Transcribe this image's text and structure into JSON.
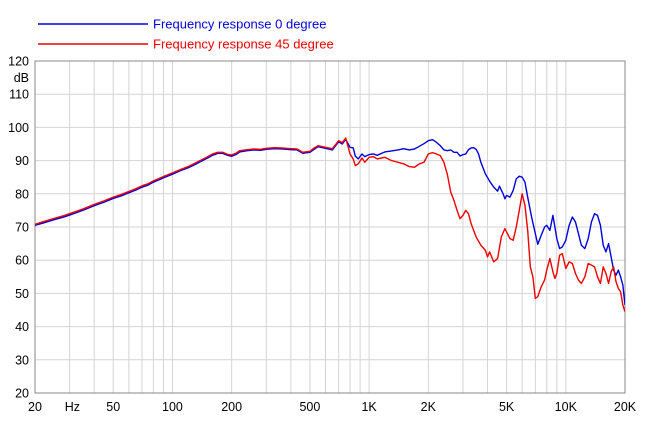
{
  "chart_data": {
    "type": "line",
    "title": "",
    "xlabel": "",
    "ylabel": "dB",
    "x_scale": "log",
    "xlim": [
      20,
      20000
    ],
    "ylim": [
      20,
      120
    ],
    "y_ticks": [
      20,
      30,
      40,
      50,
      60,
      70,
      80,
      90,
      100,
      110,
      120
    ],
    "x_tick_labels": [
      {
        "value": 20,
        "label": "20"
      },
      {
        "value": 50,
        "label": "50"
      },
      {
        "value": 100,
        "label": "100"
      },
      {
        "value": 200,
        "label": "200"
      },
      {
        "value": 500,
        "label": "500"
      },
      {
        "value": 1000,
        "label": "1K"
      },
      {
        "value": 2000,
        "label": "2K"
      },
      {
        "value": 5000,
        "label": "5K"
      },
      {
        "value": 10000,
        "label": "10K"
      },
      {
        "value": 20000,
        "label": "20K"
      }
    ],
    "x_unit_label": "Hz",
    "grid": true,
    "legend_position": "top-left",
    "series": [
      {
        "name": "Frequency response 0 degree",
        "color": "#0000dd",
        "points": [
          [
            20,
            70.5
          ],
          [
            22,
            71.2
          ],
          [
            25,
            72.2
          ],
          [
            28,
            73.0
          ],
          [
            30,
            73.6
          ],
          [
            35,
            75.0
          ],
          [
            40,
            76.4
          ],
          [
            45,
            77.5
          ],
          [
            50,
            78.6
          ],
          [
            55,
            79.4
          ],
          [
            60,
            80.3
          ],
          [
            65,
            81.1
          ],
          [
            70,
            82.0
          ],
          [
            75,
            82.6
          ],
          [
            80,
            83.5
          ],
          [
            90,
            84.8
          ],
          [
            100,
            85.9
          ],
          [
            110,
            87.0
          ],
          [
            120,
            87.8
          ],
          [
            130,
            88.8
          ],
          [
            140,
            89.8
          ],
          [
            150,
            90.7
          ],
          [
            160,
            91.6
          ],
          [
            170,
            92.2
          ],
          [
            180,
            92.2
          ],
          [
            190,
            91.6
          ],
          [
            200,
            91.3
          ],
          [
            210,
            91.8
          ],
          [
            220,
            92.6
          ],
          [
            240,
            93.0
          ],
          [
            260,
            93.2
          ],
          [
            280,
            93.1
          ],
          [
            300,
            93.4
          ],
          [
            330,
            93.6
          ],
          [
            360,
            93.5
          ],
          [
            400,
            93.3
          ],
          [
            430,
            93.2
          ],
          [
            460,
            92.2
          ],
          [
            500,
            92.5
          ],
          [
            520,
            93.2
          ],
          [
            550,
            94.2
          ],
          [
            600,
            93.7
          ],
          [
            650,
            93.2
          ],
          [
            700,
            95.7
          ],
          [
            730,
            95.0
          ],
          [
            760,
            96.4
          ],
          [
            800,
            94.0
          ],
          [
            830,
            93.8
          ],
          [
            850,
            91.4
          ],
          [
            880,
            90.5
          ],
          [
            920,
            92.0
          ],
          [
            950,
            91.2
          ],
          [
            1000,
            91.8
          ],
          [
            1050,
            92.0
          ],
          [
            1100,
            91.6
          ],
          [
            1200,
            92.6
          ],
          [
            1300,
            92.9
          ],
          [
            1400,
            93.2
          ],
          [
            1500,
            93.6
          ],
          [
            1600,
            93.2
          ],
          [
            1700,
            93.5
          ],
          [
            1800,
            94.3
          ],
          [
            1900,
            95.1
          ],
          [
            2000,
            96.0
          ],
          [
            2100,
            96.3
          ],
          [
            2200,
            95.5
          ],
          [
            2300,
            94.5
          ],
          [
            2400,
            93.2
          ],
          [
            2500,
            93.0
          ],
          [
            2600,
            93.2
          ],
          [
            2700,
            92.5
          ],
          [
            2800,
            92.5
          ],
          [
            2900,
            91.4
          ],
          [
            3000,
            91.8
          ],
          [
            3100,
            92.0
          ],
          [
            3200,
            93.3
          ],
          [
            3300,
            93.8
          ],
          [
            3400,
            93.9
          ],
          [
            3500,
            93.4
          ],
          [
            3600,
            92.0
          ],
          [
            3700,
            89.5
          ],
          [
            3900,
            86.0
          ],
          [
            4100,
            83.8
          ],
          [
            4300,
            82.0
          ],
          [
            4500,
            80.8
          ],
          [
            4600,
            82.3
          ],
          [
            4800,
            80.0
          ],
          [
            4900,
            78.5
          ],
          [
            5000,
            79.5
          ],
          [
            5200,
            79.0
          ],
          [
            5400,
            81.0
          ],
          [
            5600,
            84.5
          ],
          [
            5800,
            85.3
          ],
          [
            6000,
            85.0
          ],
          [
            6200,
            83.5
          ],
          [
            6400,
            79.0
          ],
          [
            6700,
            73.0
          ],
          [
            7000,
            68.0
          ],
          [
            7200,
            64.8
          ],
          [
            7500,
            67.5
          ],
          [
            7800,
            70.0
          ],
          [
            8000,
            70.5
          ],
          [
            8300,
            69.0
          ],
          [
            8600,
            73.5
          ],
          [
            8800,
            70.0
          ],
          [
            9000,
            66.5
          ],
          [
            9300,
            63.5
          ],
          [
            9600,
            64.0
          ],
          [
            10000,
            66.0
          ],
          [
            10400,
            70.5
          ],
          [
            10800,
            73.0
          ],
          [
            11200,
            71.5
          ],
          [
            11600,
            68.0
          ],
          [
            12000,
            64.5
          ],
          [
            12500,
            63.5
          ],
          [
            13000,
            66.5
          ],
          [
            13500,
            71.5
          ],
          [
            14000,
            74.0
          ],
          [
            14500,
            73.5
          ],
          [
            15000,
            70.5
          ],
          [
            15500,
            64.5
          ],
          [
            16000,
            62.5
          ],
          [
            16500,
            65.0
          ],
          [
            17000,
            61.0
          ],
          [
            17500,
            57.0
          ],
          [
            18000,
            55.5
          ],
          [
            18500,
            57.0
          ],
          [
            19000,
            55.0
          ],
          [
            19500,
            52.5
          ],
          [
            20000,
            46.5
          ]
        ]
      },
      {
        "name": "Frequency response 45 degree",
        "color": "#ee0000",
        "points": [
          [
            20,
            70.8
          ],
          [
            22,
            71.6
          ],
          [
            25,
            72.6
          ],
          [
            28,
            73.4
          ],
          [
            30,
            74.0
          ],
          [
            35,
            75.4
          ],
          [
            40,
            76.8
          ],
          [
            45,
            77.9
          ],
          [
            50,
            79.0
          ],
          [
            55,
            79.8
          ],
          [
            60,
            80.7
          ],
          [
            65,
            81.5
          ],
          [
            70,
            82.4
          ],
          [
            75,
            83.0
          ],
          [
            80,
            83.9
          ],
          [
            90,
            85.2
          ],
          [
            100,
            86.3
          ],
          [
            110,
            87.3
          ],
          [
            120,
            88.2
          ],
          [
            130,
            89.2
          ],
          [
            140,
            90.2
          ],
          [
            150,
            91.1
          ],
          [
            160,
            92.0
          ],
          [
            170,
            92.5
          ],
          [
            180,
            92.5
          ],
          [
            190,
            91.9
          ],
          [
            200,
            91.7
          ],
          [
            210,
            92.2
          ],
          [
            220,
            93.0
          ],
          [
            240,
            93.3
          ],
          [
            260,
            93.5
          ],
          [
            280,
            93.4
          ],
          [
            300,
            93.7
          ],
          [
            330,
            93.9
          ],
          [
            360,
            93.8
          ],
          [
            400,
            93.6
          ],
          [
            430,
            93.5
          ],
          [
            460,
            92.5
          ],
          [
            500,
            92.8
          ],
          [
            520,
            93.6
          ],
          [
            550,
            94.5
          ],
          [
            600,
            94.0
          ],
          [
            650,
            93.6
          ],
          [
            700,
            96.0
          ],
          [
            730,
            95.4
          ],
          [
            760,
            96.8
          ],
          [
            800,
            92.0
          ],
          [
            830,
            90.5
          ],
          [
            850,
            88.5
          ],
          [
            880,
            89.0
          ],
          [
            920,
            90.8
          ],
          [
            950,
            89.5
          ],
          [
            1000,
            91.0
          ],
          [
            1050,
            91.2
          ],
          [
            1100,
            90.5
          ],
          [
            1200,
            91.0
          ],
          [
            1300,
            90.0
          ],
          [
            1400,
            89.5
          ],
          [
            1500,
            89.0
          ],
          [
            1600,
            88.2
          ],
          [
            1700,
            88.0
          ],
          [
            1800,
            89.0
          ],
          [
            1900,
            89.5
          ],
          [
            2000,
            92.0
          ],
          [
            2100,
            92.4
          ],
          [
            2200,
            92.0
          ],
          [
            2300,
            91.5
          ],
          [
            2400,
            89.5
          ],
          [
            2500,
            85.8
          ],
          [
            2600,
            80.5
          ],
          [
            2700,
            78.0
          ],
          [
            2800,
            75.0
          ],
          [
            2900,
            72.5
          ],
          [
            3000,
            73.5
          ],
          [
            3100,
            75.0
          ],
          [
            3200,
            74.0
          ],
          [
            3300,
            71.0
          ],
          [
            3500,
            67.0
          ],
          [
            3700,
            64.5
          ],
          [
            3900,
            63.0
          ],
          [
            4000,
            61.0
          ],
          [
            4100,
            62.5
          ],
          [
            4300,
            59.5
          ],
          [
            4500,
            60.5
          ],
          [
            4700,
            67.0
          ],
          [
            4900,
            69.5
          ],
          [
            5000,
            68.5
          ],
          [
            5200,
            66.5
          ],
          [
            5400,
            66.0
          ],
          [
            5600,
            70.0
          ],
          [
            5800,
            75.0
          ],
          [
            6000,
            80.0
          ],
          [
            6200,
            76.5
          ],
          [
            6400,
            69.0
          ],
          [
            6600,
            58.0
          ],
          [
            6800,
            55.0
          ],
          [
            7000,
            48.5
          ],
          [
            7200,
            49.0
          ],
          [
            7500,
            52.0
          ],
          [
            7800,
            54.0
          ],
          [
            8000,
            57.0
          ],
          [
            8300,
            60.5
          ],
          [
            8600,
            56.5
          ],
          [
            8800,
            54.5
          ],
          [
            9000,
            56.0
          ],
          [
            9300,
            61.5
          ],
          [
            9600,
            62.0
          ],
          [
            10000,
            57.5
          ],
          [
            10400,
            59.5
          ],
          [
            10800,
            59.0
          ],
          [
            11200,
            56.0
          ],
          [
            11600,
            54.0
          ],
          [
            12000,
            53.0
          ],
          [
            12500,
            55.0
          ],
          [
            13000,
            59.0
          ],
          [
            13500,
            58.5
          ],
          [
            14000,
            58.0
          ],
          [
            14500,
            55.0
          ],
          [
            15000,
            53.0
          ],
          [
            15500,
            58.0
          ],
          [
            16000,
            56.0
          ],
          [
            16500,
            53.0
          ],
          [
            17000,
            56.5
          ],
          [
            17500,
            58.0
          ],
          [
            18000,
            53.5
          ],
          [
            18500,
            51.5
          ],
          [
            19000,
            50.5
          ],
          [
            19500,
            46.5
          ],
          [
            20000,
            44.5
          ]
        ]
      }
    ]
  }
}
